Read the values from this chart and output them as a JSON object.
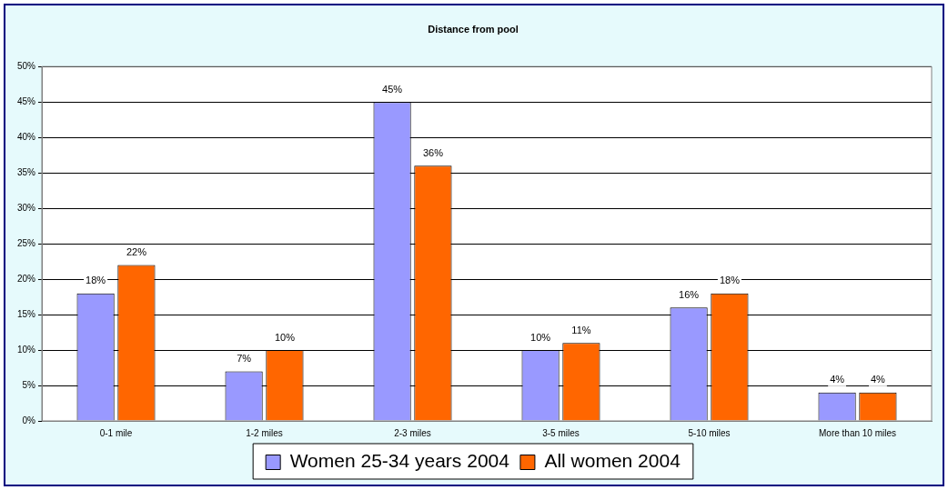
{
  "chart_data": {
    "type": "bar",
    "title": "Distance from pool",
    "categories": [
      "0-1 mile",
      "1-2 miles",
      "2-3 miles",
      "3-5 miles",
      "5-10 miles",
      "More than 10 miles"
    ],
    "series": [
      {
        "name": "Women 25-34 years 2004",
        "color": "#9999ff",
        "values": [
          18,
          7,
          45,
          10,
          16,
          4
        ],
        "value_labels": [
          "18%",
          "7%",
          "45%",
          "10%",
          "16%",
          "4%"
        ]
      },
      {
        "name": "All women 2004",
        "color": "#ff6600",
        "values": [
          22,
          10,
          36,
          11,
          18,
          4
        ],
        "value_labels": [
          "22%",
          "10%",
          "36%",
          "11%",
          "18%",
          "4%"
        ]
      }
    ],
    "ylim": [
      0,
      50
    ],
    "yticks": [
      {
        "value": 0,
        "label": "0%"
      },
      {
        "value": 5,
        "label": "5%"
      },
      {
        "value": 10,
        "label": "10%"
      },
      {
        "value": 15,
        "label": "15%"
      },
      {
        "value": 20,
        "label": "20%"
      },
      {
        "value": 25,
        "label": "25%"
      },
      {
        "value": 30,
        "label": "30%"
      },
      {
        "value": 35,
        "label": "35%"
      },
      {
        "value": 40,
        "label": "40%"
      },
      {
        "value": 45,
        "label": "45%"
      },
      {
        "value": 50,
        "label": "50%"
      }
    ],
    "grid": "y",
    "legend": "bottom"
  }
}
